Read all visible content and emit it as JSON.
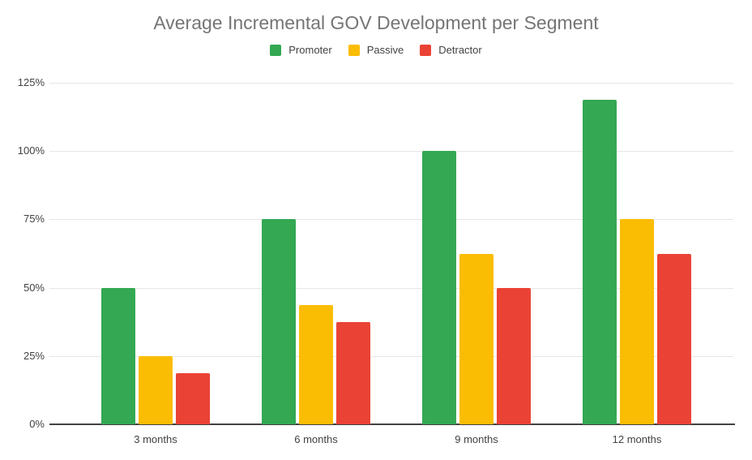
{
  "chart_data": {
    "type": "bar",
    "title": "Average Incremental GOV Development per Segment",
    "categories": [
      "3 months",
      "6 months",
      "9 months",
      "12 months"
    ],
    "series": [
      {
        "name": "Promoter",
        "color": "#34a853",
        "values": [
          50,
          75,
          100,
          118.75
        ]
      },
      {
        "name": "Passive",
        "color": "#fbbc04",
        "values": [
          25,
          43.75,
          62.5,
          75
        ]
      },
      {
        "name": "Detractor",
        "color": "#ea4335",
        "values": [
          18.75,
          37.5,
          50,
          62.5
        ]
      }
    ],
    "xlabel": "",
    "ylabel": "",
    "y_ticks": [
      "0%",
      "25%",
      "50%",
      "75%",
      "100%",
      "125%"
    ],
    "y_tick_values": [
      0,
      25,
      50,
      75,
      100,
      125
    ],
    "ylim": [
      0,
      125
    ],
    "grid": true,
    "legend_position": "top",
    "value_format": "percent"
  },
  "colors": {
    "title_text": "#757575",
    "axis_text": "#424242",
    "gridline": "#e6e6e6",
    "axis_line": "#424242",
    "background": "#ffffff"
  }
}
